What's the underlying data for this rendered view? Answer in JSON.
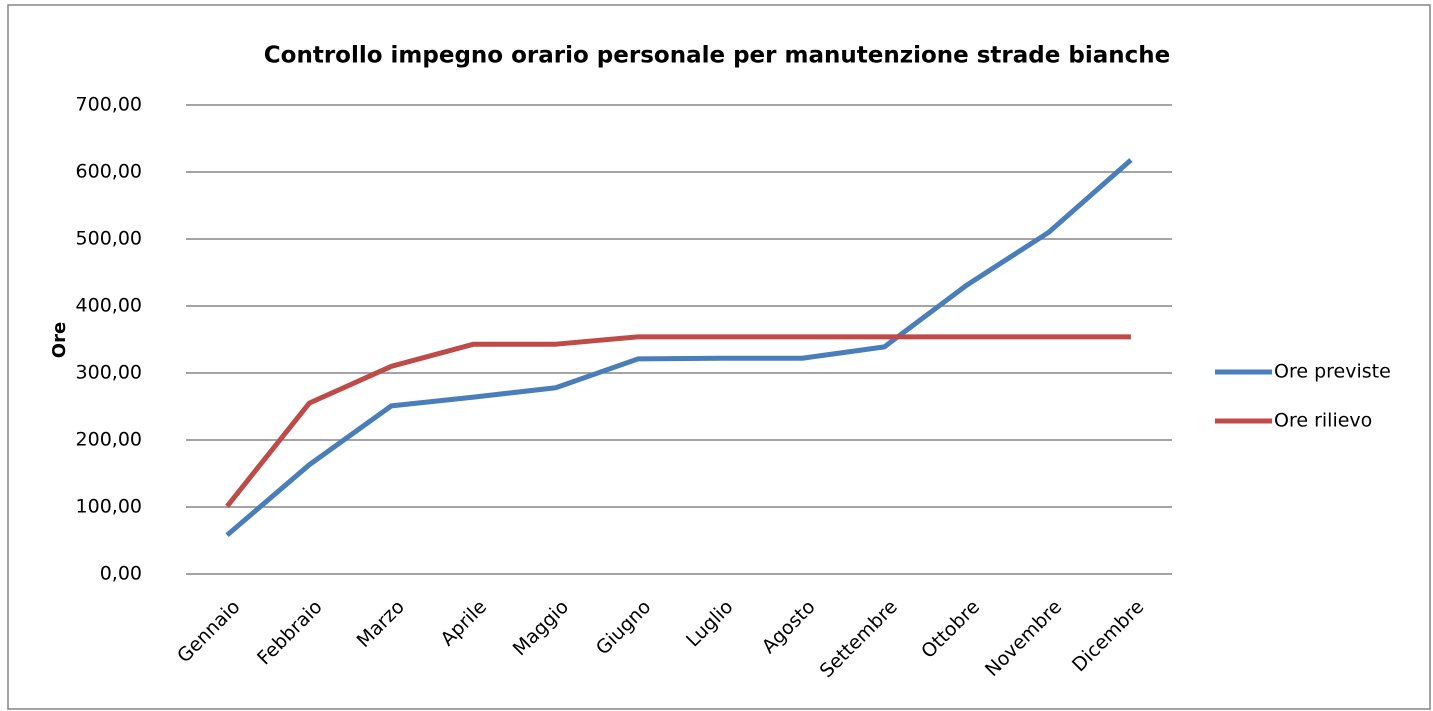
{
  "chart_data": {
    "type": "line",
    "title": "Controllo impegno orario personale per manutenzione strade bianche",
    "y_label": "Ore",
    "categories": [
      "Gennaio",
      "Febbraio",
      "Marzo",
      "Aprile",
      "Maggio",
      "Giugno",
      "Luglio",
      "Agosto",
      "Settembre",
      "Ottobre",
      "Novembre",
      "Dicembre"
    ],
    "series": [
      {
        "name": "Ore previste",
        "color": "#4a7ebb",
        "values": [
          58,
          163,
          251,
          264,
          278,
          321,
          322,
          322,
          339,
          431,
          510,
          618
        ]
      },
      {
        "name": "Ore rilievo",
        "color": "#be4b48",
        "values": [
          101,
          255,
          310,
          343,
          343,
          354,
          354,
          354,
          354,
          354,
          354,
          354
        ]
      }
    ],
    "ylim": [
      0,
      700
    ],
    "yticks": [
      {
        "value": 0,
        "label": "0,00"
      },
      {
        "value": 100,
        "label": "100,00"
      },
      {
        "value": 200,
        "label": "200,00"
      },
      {
        "value": 300,
        "label": "300,00"
      },
      {
        "value": 400,
        "label": "400,00"
      },
      {
        "value": 500,
        "label": "500,00"
      },
      {
        "value": 600,
        "label": "600,00"
      },
      {
        "value": 700,
        "label": "700,00"
      }
    ],
    "grid": true,
    "legend": "right"
  }
}
